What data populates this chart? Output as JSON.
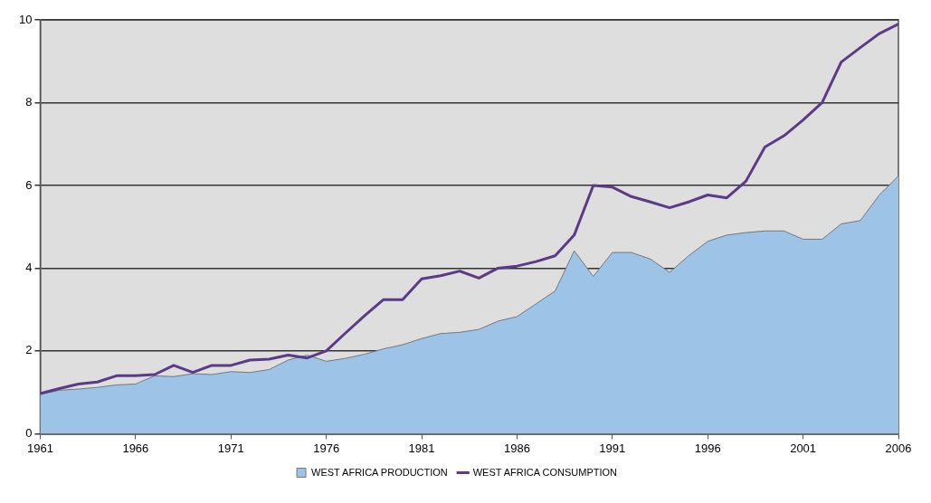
{
  "chart_data": {
    "type": "area",
    "x": [
      1961,
      1962,
      1963,
      1964,
      1965,
      1966,
      1967,
      1968,
      1969,
      1970,
      1971,
      1972,
      1973,
      1974,
      1975,
      1976,
      1977,
      1978,
      1979,
      1980,
      1981,
      1982,
      1983,
      1984,
      1985,
      1986,
      1987,
      1988,
      1989,
      1990,
      1991,
      1992,
      1993,
      1994,
      1995,
      1996,
      1997,
      1998,
      1999,
      2000,
      2001,
      2002,
      2003,
      2004,
      2005,
      2006
    ],
    "series": [
      {
        "name": "WEST AFRICA PRODUCTION",
        "color": "#9dc3e6",
        "values": [
          0.95,
          1.05,
          1.08,
          1.12,
          1.18,
          1.2,
          1.4,
          1.38,
          1.45,
          1.43,
          1.5,
          1.48,
          1.55,
          1.78,
          1.9,
          1.75,
          1.82,
          1.92,
          2.05,
          2.15,
          2.3,
          2.42,
          2.45,
          2.52,
          2.72,
          2.83,
          3.14,
          3.45,
          4.42,
          3.8,
          4.38,
          4.38,
          4.22,
          3.9,
          4.3,
          4.65,
          4.8,
          4.86,
          4.9,
          4.9,
          4.7,
          4.7,
          5.07,
          5.15,
          5.77,
          6.23
        ]
      },
      {
        "name": "WEST AFRICA CONSUMPTION",
        "type": "line",
        "color": "#5b3a86",
        "values": [
          0.97,
          1.09,
          1.2,
          1.25,
          1.4,
          1.4,
          1.43,
          1.65,
          1.48,
          1.65,
          1.65,
          1.78,
          1.8,
          1.9,
          1.83,
          2.0,
          2.43,
          2.85,
          3.24,
          3.24,
          3.74,
          3.82,
          3.93,
          3.76,
          4.0,
          4.05,
          4.16,
          4.3,
          4.8,
          6.0,
          5.96,
          5.73,
          5.6,
          5.46,
          5.6,
          5.77,
          5.7,
          6.1,
          6.93,
          7.2,
          7.58,
          8.0,
          8.98,
          9.33,
          9.67,
          9.9
        ]
      }
    ],
    "xlim": [
      1961,
      2006
    ],
    "xticks": [
      1961,
      1966,
      1971,
      1976,
      1981,
      1986,
      1991,
      1996,
      2001,
      2006
    ],
    "ylim": [
      0,
      10
    ],
    "yticks": [
      0,
      2,
      4,
      6,
      8,
      10
    ],
    "grid": "y",
    "legend": "bottom",
    "marker": "none",
    "line_style": "solid"
  }
}
